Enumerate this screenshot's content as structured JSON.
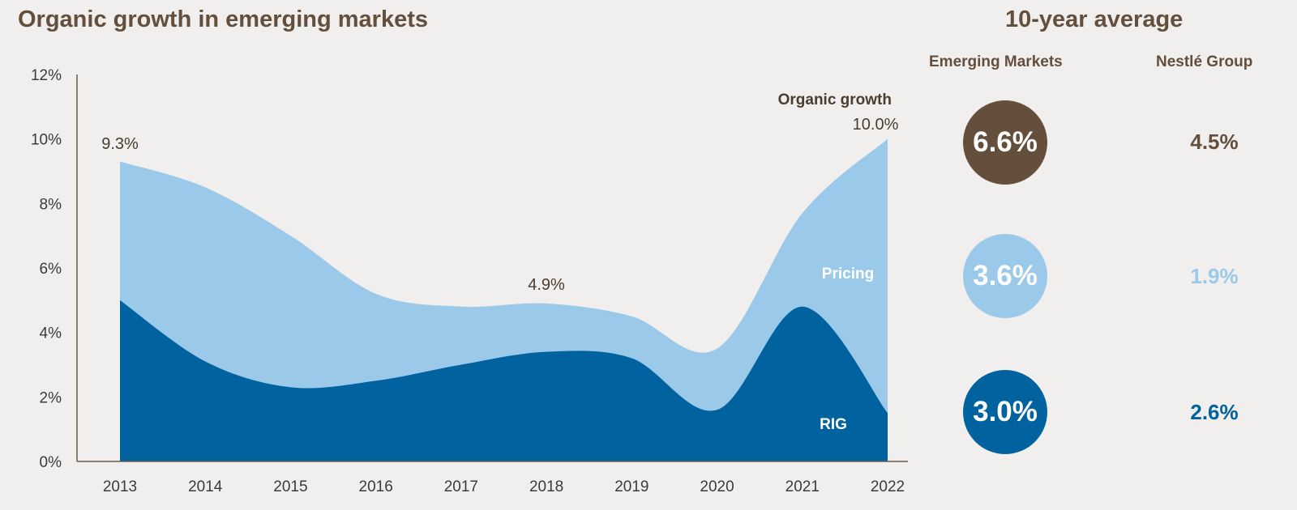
{
  "colors": {
    "brown": "#634f3c",
    "pricing": "#9bc9ea",
    "rig": "#0063a0"
  },
  "chart_data": {
    "type": "area",
    "stacked": true,
    "title": "Organic growth in emerging markets",
    "categories": [
      "2013",
      "2014",
      "2015",
      "2016",
      "2017",
      "2018",
      "2019",
      "2020",
      "2021",
      "2022"
    ],
    "series": [
      {
        "name": "RIG",
        "values": [
          5.0,
          3.1,
          2.3,
          2.5,
          3.0,
          3.4,
          3.2,
          1.6,
          4.8,
          1.5
        ]
      },
      {
        "name": "Pricing",
        "values": [
          4.3,
          5.4,
          4.7,
          2.7,
          1.8,
          1.5,
          1.3,
          1.9,
          2.9,
          8.5
        ]
      }
    ],
    "organic_growth_total": [
      9.3,
      8.5,
      7.0,
      5.2,
      4.8,
      4.9,
      4.5,
      3.5,
      7.7,
      10.0
    ],
    "ylim": [
      0,
      12
    ],
    "yticks": [
      "0%",
      "2%",
      "4%",
      "6%",
      "8%",
      "10%",
      "12%"
    ],
    "series_labels": {
      "rig": "RIG",
      "pricing": "Pricing",
      "total": "Organic growth"
    },
    "annotations": {
      "a2013": "9.3%",
      "a2018": "4.9%",
      "a2022": "10.0%"
    }
  },
  "average": {
    "title": "10-year average",
    "col_em": "Emerging Markets",
    "col_group": "Nestlé Group",
    "rows": [
      {
        "em": "6.6%",
        "group": "4.5%"
      },
      {
        "em": "3.6%",
        "group": "1.9%"
      },
      {
        "em": "3.0%",
        "group": "2.6%"
      }
    ]
  }
}
